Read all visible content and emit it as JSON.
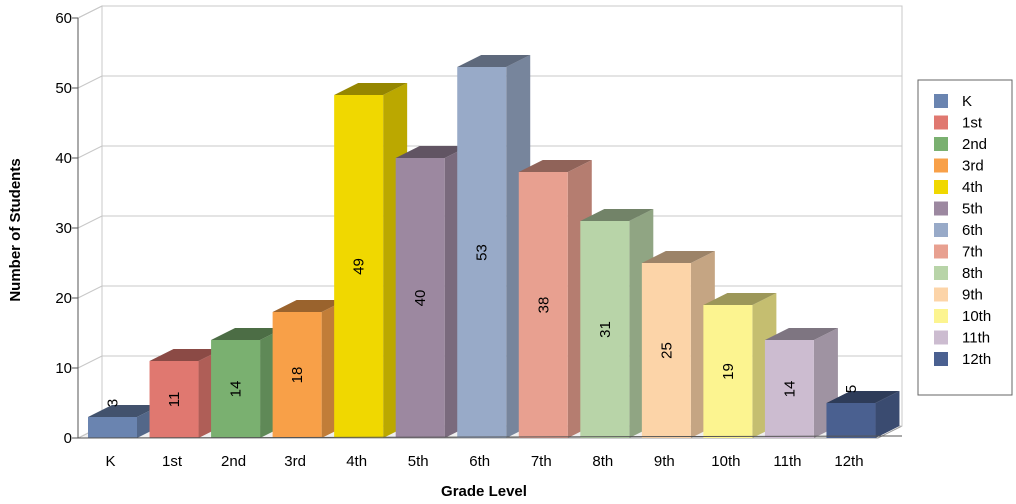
{
  "chart_data": {
    "type": "bar",
    "title": "",
    "xlabel": "Grade Level",
    "ylabel": "Number of Students",
    "ylim": [
      0,
      60
    ],
    "yticks": [
      "0",
      "10",
      "20",
      "30",
      "40",
      "50",
      "60"
    ],
    "categories": [
      "K",
      "1st",
      "2nd",
      "3rd",
      "4th",
      "5th",
      "6th",
      "7th",
      "8th",
      "9th",
      "10th",
      "11th",
      "12th"
    ],
    "values": [
      3,
      11,
      14,
      18,
      49,
      40,
      53,
      38,
      31,
      25,
      19,
      14,
      5
    ],
    "data_labels": [
      "3",
      "11",
      "14",
      "18",
      "49",
      "40",
      "53",
      "38",
      "31",
      "25",
      "19",
      "14",
      "5"
    ],
    "legend": {
      "placement": "right",
      "entries": [
        "K",
        "1st",
        "2nd",
        "3rd",
        "4th",
        "5th",
        "6th",
        "7th",
        "8th",
        "9th",
        "10th",
        "11th",
        "12th"
      ]
    },
    "colors": [
      "#6a84b0",
      "#e07870",
      "#7ab070",
      "#f8a048",
      "#f0d800",
      "#9c88a0",
      "#98aac8",
      "#e8a090",
      "#b8d4a8",
      "#fcd4a8",
      "#fcf490",
      "#ccbcd0",
      "#4a6090"
    ],
    "grid": true,
    "style": "3d"
  }
}
